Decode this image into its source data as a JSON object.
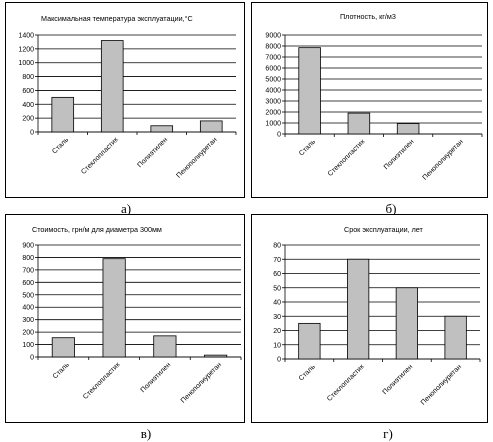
{
  "chart_data": [
    {
      "type": "bar",
      "title": "Максимальная температура эксплуатации,°С",
      "caption": "а)",
      "categories": [
        "Сталь",
        "Стеклопластик",
        "Полиэтилен",
        "Пенополиуретан"
      ],
      "values": [
        500,
        1320,
        90,
        160
      ],
      "ylim": [
        0,
        1400
      ],
      "yticks": [
        0,
        200,
        400,
        600,
        800,
        1000,
        1200,
        1400
      ],
      "grid": true,
      "bar_color": "#c0c0c0"
    },
    {
      "type": "bar",
      "title": "Плотность, кг/м3",
      "caption": "б)",
      "categories": [
        "Сталь",
        "Стеклопластик",
        "Полиэтилен",
        "Пенополиуретан"
      ],
      "values": [
        7850,
        1900,
        950,
        0
      ],
      "ylim": [
        0,
        9000
      ],
      "yticks": [
        0,
        1000,
        2000,
        3000,
        4000,
        5000,
        6000,
        7000,
        8000,
        9000
      ],
      "grid": true,
      "bar_color": "#c0c0c0"
    },
    {
      "type": "bar",
      "title": "Стоимость, грн/м для диаметра 300мм",
      "caption": "в)",
      "categories": [
        "Сталь",
        "Стеклопластик",
        "Полиэтилен",
        "Пенополиуретан"
      ],
      "values": [
        155,
        790,
        170,
        15
      ],
      "ylim": [
        0,
        900
      ],
      "yticks": [
        0,
        100,
        200,
        300,
        400,
        500,
        600,
        700,
        800,
        900
      ],
      "grid": true,
      "bar_color": "#c0c0c0"
    },
    {
      "type": "bar",
      "title": "Срок эксплуатации, лет",
      "caption": "г)",
      "categories": [
        "Сталь",
        "Стеклопластик",
        "Полиэтилен",
        "Пенополиуретан"
      ],
      "values": [
        25,
        70,
        50,
        30
      ],
      "ylim": [
        0,
        80
      ],
      "yticks": [
        0,
        10,
        20,
        30,
        40,
        50,
        60,
        70,
        80
      ],
      "grid": true,
      "bar_color": "#c0c0c0"
    }
  ]
}
